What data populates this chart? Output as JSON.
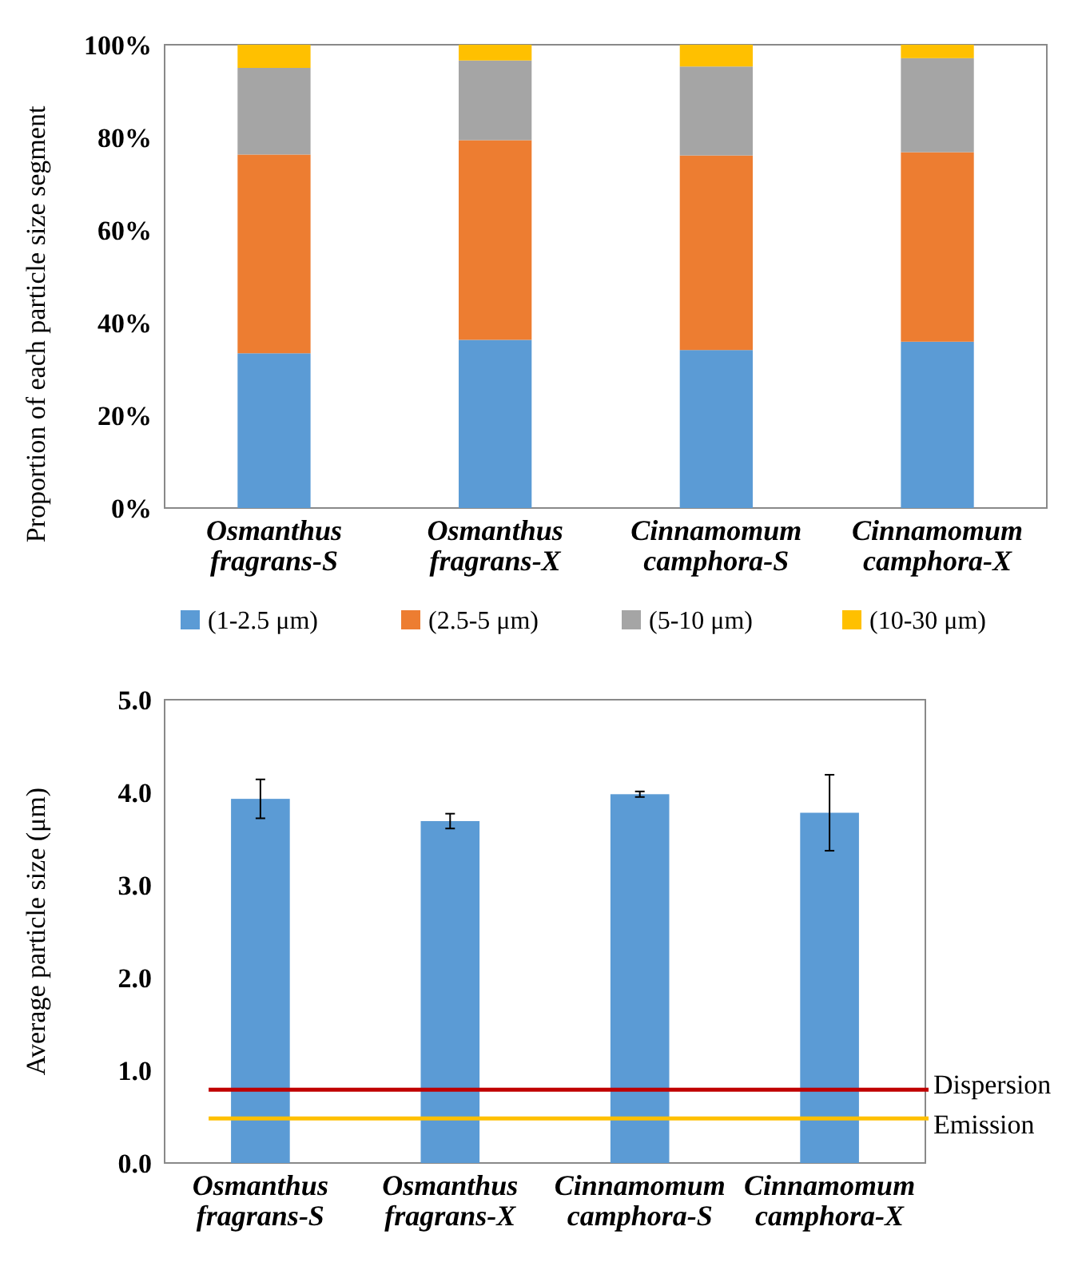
{
  "chart_data": [
    {
      "type": "bar",
      "stacked": true,
      "ylabel": "Proportion of each particle size segment",
      "categories": [
        "Osmanthus fragrans-S",
        "Osmanthus fragrans-X",
        "Cinnamomum camphora-S",
        "Cinnamomum camphora-X"
      ],
      "series": [
        {
          "name": "(1-2.5 μm)",
          "color": "#5b9bd5",
          "values": [
            33.4,
            36.3,
            34.1,
            35.9
          ]
        },
        {
          "name": "(2.5-5 μm)",
          "color": "#ed7d31",
          "values": [
            42.9,
            43.1,
            42.0,
            40.9
          ]
        },
        {
          "name": "(5-10 μm)",
          "color": "#a5a5a5",
          "values": [
            18.7,
            17.2,
            19.2,
            20.3
          ]
        },
        {
          "name": "(10-30 μm)",
          "color": "#ffc000",
          "values": [
            5.0,
            3.4,
            4.7,
            2.9
          ]
        }
      ],
      "ylim": [
        0,
        100
      ],
      "yticks": [
        {
          "value": 0,
          "label": "0%"
        },
        {
          "value": 20,
          "label": "20%"
        },
        {
          "value": 40,
          "label": "40%"
        },
        {
          "value": 60,
          "label": "60%"
        },
        {
          "value": 80,
          "label": "80%"
        },
        {
          "value": 100,
          "label": "100%"
        }
      ],
      "legend": "bottom"
    },
    {
      "type": "bar",
      "ylabel": "Average particle size (μm)",
      "categories": [
        "Osmanthus fragrans-S",
        "Osmanthus fragrans-X",
        "Cinnamomum camphora-S",
        "Cinnamomum camphora-X"
      ],
      "values": [
        3.93,
        3.69,
        3.98,
        3.78
      ],
      "errors": [
        0.21,
        0.08,
        0.03,
        0.41
      ],
      "color": "#5b9bd5",
      "ylim": [
        0,
        5
      ],
      "yticks": [
        {
          "value": 0,
          "label": "0.0"
        },
        {
          "value": 1,
          "label": "1.0"
        },
        {
          "value": 2,
          "label": "2.0"
        },
        {
          "value": 3,
          "label": "3.0"
        },
        {
          "value": 4,
          "label": "4.0"
        },
        {
          "value": 5,
          "label": "5.0"
        }
      ],
      "ref_lines": [
        {
          "axis": "y",
          "value": 0.79,
          "label": "Dispersion",
          "color": "#c00000"
        },
        {
          "axis": "y",
          "value": 0.48,
          "label": "Emission",
          "color": "#ffc000"
        }
      ]
    }
  ]
}
